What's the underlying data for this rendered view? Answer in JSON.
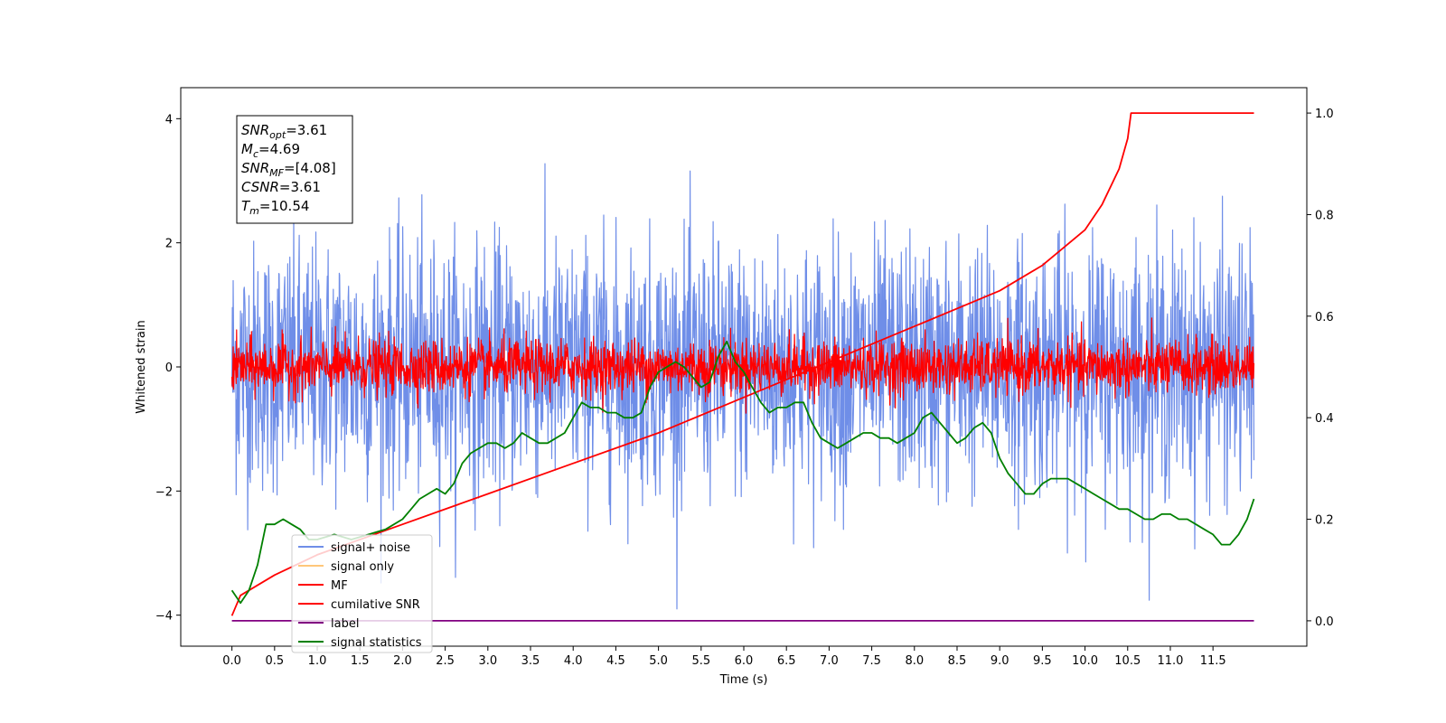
{
  "chart_data": {
    "type": "line",
    "xlabel": "Time (s)",
    "ylabel": "Whitened strain",
    "xlim": [
      -0.6,
      12.6
    ],
    "ylim": [
      -4.5,
      4.5
    ],
    "ylim_right": [
      -0.05,
      1.05
    ],
    "x_ticks": [
      "0.0",
      "0.5",
      "1.0",
      "1.5",
      "2.0",
      "2.5",
      "3.0",
      "3.5",
      "4.0",
      "4.5",
      "5.0",
      "5.5",
      "6.0",
      "6.5",
      "7.0",
      "7.5",
      "8.0",
      "8.5",
      "9.0",
      "9.5",
      "10.0",
      "10.5",
      "11.0",
      "11.5"
    ],
    "y_ticks": [
      "−4",
      "−2",
      "0",
      "2",
      "4"
    ],
    "y_ticks_right": [
      "0.0",
      "0.2",
      "0.4",
      "0.6",
      "0.8",
      "1.0"
    ],
    "grid": false,
    "legend_position": "lower-left",
    "annotation": {
      "lines": [
        {
          "main": "SNR",
          "sub": "opt",
          "value": "=3.61"
        },
        {
          "main": "M",
          "sub": "c",
          "value": "=4.69"
        },
        {
          "main": "SNR",
          "sub": "MF",
          "value": "=[4.08]"
        },
        {
          "main": "CSNR",
          "sub": "",
          "value": "=3.61"
        },
        {
          "main": "T",
          "sub": "m",
          "value": "=10.54"
        }
      ]
    },
    "series": [
      {
        "name": "signal+ noise",
        "color": "#6f8ee8",
        "axis": "left",
        "style": "noise",
        "x_range": [
          0,
          11.98
        ],
        "amplitude": 1.0,
        "peaks_up": [
          4.05,
          3.6,
          3.5
        ],
        "peaks_down": [
          -3.95,
          -4.1
        ]
      },
      {
        "name": "signal only",
        "color": "#ffc77a",
        "axis": "left",
        "style": "hidden"
      },
      {
        "name": "MF",
        "color": "#ff0000",
        "axis": "left",
        "style": "noise",
        "x_range": [
          0,
          11.98
        ],
        "amplitude": 0.22
      },
      {
        "name": "cumilative SNR",
        "color": "#ff0000",
        "axis": "right",
        "x": [
          0.0,
          0.1,
          0.5,
          1.0,
          2.0,
          3.0,
          4.0,
          5.0,
          6.0,
          7.0,
          8.0,
          9.0,
          9.5,
          10.0,
          10.2,
          10.4,
          10.5,
          10.54,
          11.0,
          11.5,
          11.98
        ],
        "values": [
          0.01,
          0.05,
          0.09,
          0.13,
          0.19,
          0.25,
          0.31,
          0.37,
          0.44,
          0.51,
          0.58,
          0.65,
          0.7,
          0.77,
          0.82,
          0.89,
          0.95,
          1.0,
          1.0,
          1.0,
          1.0
        ]
      },
      {
        "name": "label",
        "color": "#800080",
        "axis": "right",
        "x": [
          0.0,
          11.98
        ],
        "values": [
          0.0,
          0.0
        ]
      },
      {
        "name": "signal statistics",
        "color": "#008000",
        "axis": "right",
        "x": [
          0.0,
          0.1,
          0.2,
          0.3,
          0.4,
          0.5,
          0.6,
          0.7,
          0.8,
          0.9,
          1.0,
          1.2,
          1.4,
          1.6,
          1.8,
          2.0,
          2.1,
          2.2,
          2.3,
          2.4,
          2.5,
          2.6,
          2.7,
          2.8,
          2.9,
          3.0,
          3.1,
          3.2,
          3.3,
          3.4,
          3.5,
          3.6,
          3.7,
          3.8,
          3.9,
          4.0,
          4.1,
          4.2,
          4.3,
          4.4,
          4.5,
          4.6,
          4.7,
          4.8,
          4.9,
          5.0,
          5.1,
          5.2,
          5.3,
          5.4,
          5.5,
          5.6,
          5.7,
          5.8,
          5.9,
          6.0,
          6.1,
          6.2,
          6.3,
          6.4,
          6.5,
          6.6,
          6.7,
          6.8,
          6.9,
          7.0,
          7.1,
          7.2,
          7.3,
          7.4,
          7.5,
          7.6,
          7.7,
          7.8,
          7.9,
          8.0,
          8.1,
          8.2,
          8.3,
          8.4,
          8.5,
          8.6,
          8.7,
          8.8,
          8.9,
          9.0,
          9.1,
          9.2,
          9.3,
          9.4,
          9.5,
          9.6,
          9.7,
          9.8,
          9.9,
          10.0,
          10.1,
          10.2,
          10.3,
          10.4,
          10.5,
          10.6,
          10.7,
          10.8,
          10.9,
          11.0,
          11.1,
          11.2,
          11.3,
          11.4,
          11.5,
          11.6,
          11.7,
          11.8,
          11.9,
          11.98
        ],
        "values": [
          0.06,
          0.035,
          0.06,
          0.11,
          0.19,
          0.19,
          0.2,
          0.19,
          0.18,
          0.16,
          0.16,
          0.17,
          0.16,
          0.17,
          0.18,
          0.2,
          0.22,
          0.24,
          0.25,
          0.26,
          0.25,
          0.27,
          0.31,
          0.33,
          0.34,
          0.35,
          0.35,
          0.34,
          0.35,
          0.37,
          0.36,
          0.35,
          0.35,
          0.36,
          0.37,
          0.4,
          0.43,
          0.42,
          0.42,
          0.41,
          0.41,
          0.4,
          0.4,
          0.41,
          0.46,
          0.49,
          0.5,
          0.51,
          0.5,
          0.48,
          0.46,
          0.47,
          0.52,
          0.55,
          0.51,
          0.49,
          0.46,
          0.43,
          0.41,
          0.42,
          0.42,
          0.43,
          0.43,
          0.39,
          0.36,
          0.35,
          0.34,
          0.35,
          0.36,
          0.37,
          0.37,
          0.36,
          0.36,
          0.35,
          0.36,
          0.37,
          0.4,
          0.41,
          0.39,
          0.37,
          0.35,
          0.36,
          0.38,
          0.39,
          0.37,
          0.32,
          0.29,
          0.27,
          0.25,
          0.25,
          0.27,
          0.28,
          0.28,
          0.28,
          0.27,
          0.26,
          0.25,
          0.24,
          0.23,
          0.22,
          0.22,
          0.21,
          0.2,
          0.2,
          0.21,
          0.21,
          0.2,
          0.2,
          0.19,
          0.18,
          0.17,
          0.15,
          0.15,
          0.17,
          0.2,
          0.24
        ]
      }
    ]
  }
}
